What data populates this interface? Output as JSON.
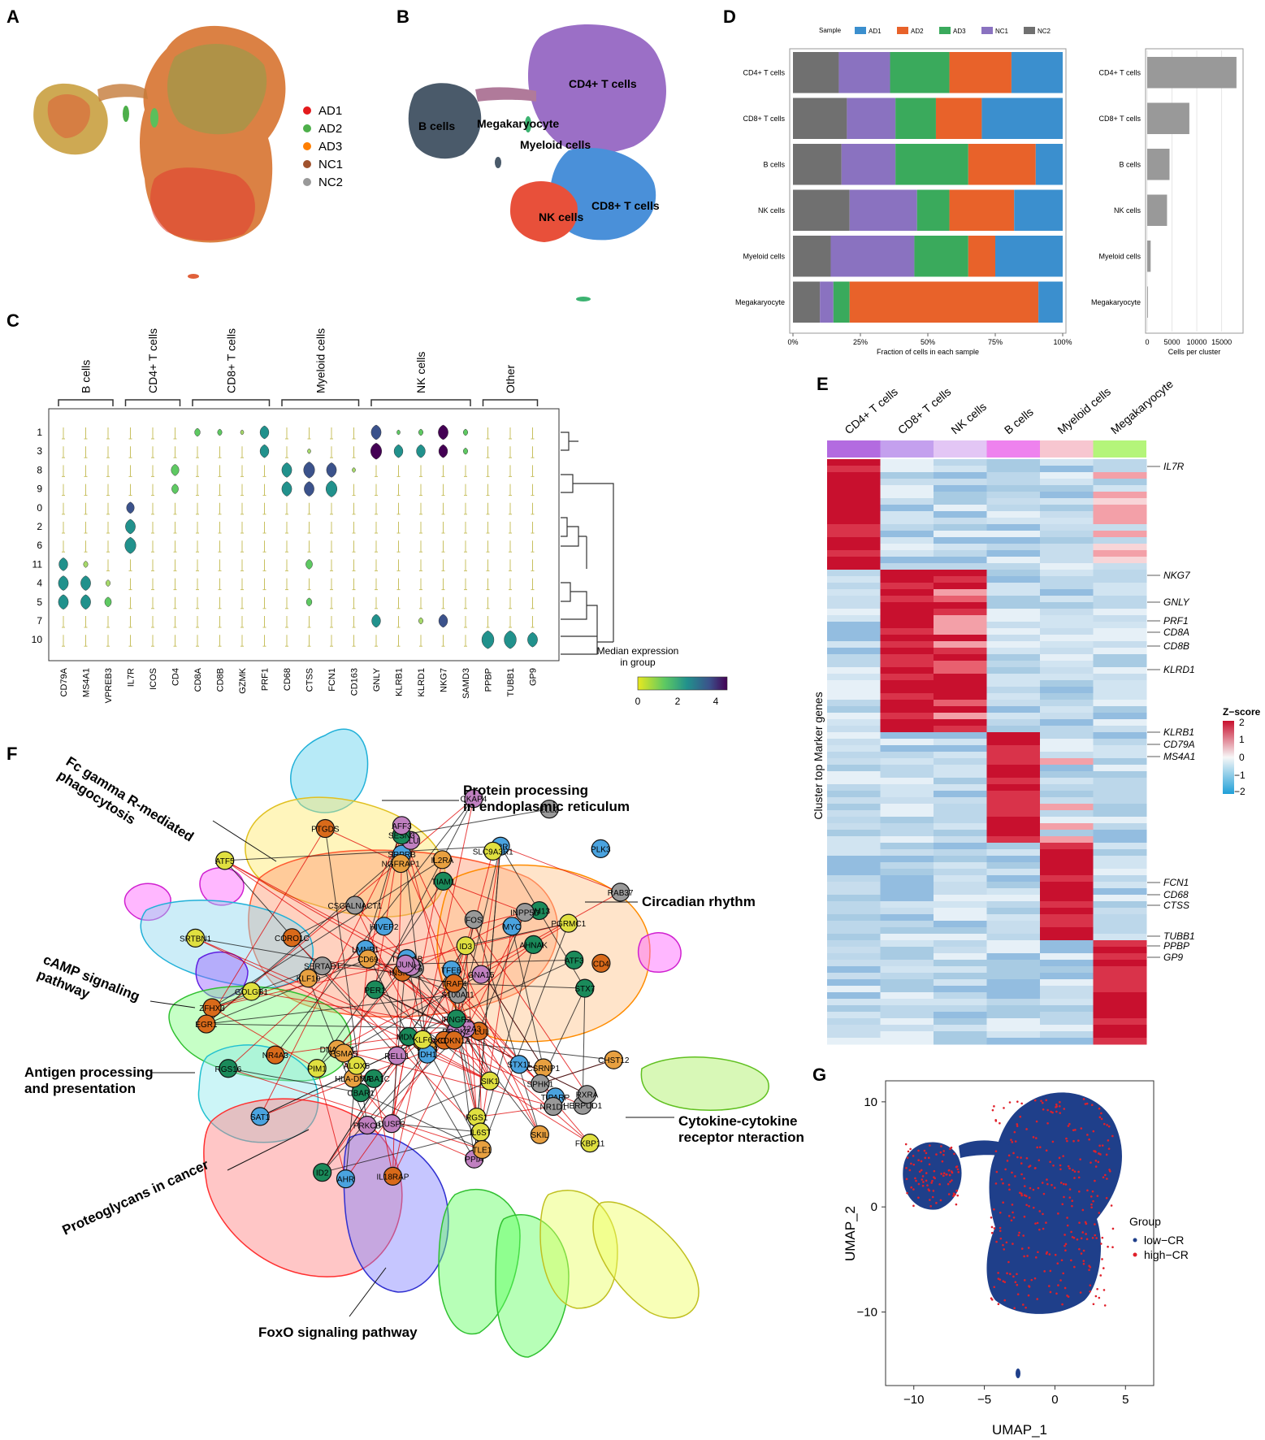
{
  "panel_letters": [
    "A",
    "B",
    "C",
    "D",
    "E",
    "F",
    "G"
  ],
  "panelA": {
    "legend": [
      {
        "label": "AD1",
        "color": "#e41a1c"
      },
      {
        "label": "AD2",
        "color": "#4daf4a"
      },
      {
        "label": "AD3",
        "color": "#ff7f00"
      },
      {
        "label": "NC1",
        "color": "#a0522d"
      },
      {
        "label": "NC2",
        "color": "#999999"
      }
    ]
  },
  "panelB": {
    "clusters": [
      {
        "label": "CD4+ T cells",
        "color": "#9b6fc6"
      },
      {
        "label": "B cells",
        "color": "#4a5a6a"
      },
      {
        "label": "Megakaryocyte",
        "color": "#e0603a"
      },
      {
        "label": "Myeloid cells",
        "color": "#3cb371"
      },
      {
        "label": "CD8+ T cells",
        "color": "#4a90d9"
      },
      {
        "label": "NK cells",
        "color": "#e8503a"
      }
    ]
  },
  "panelC": {
    "groups": [
      {
        "label": "B cells",
        "genes": [
          "CD79A",
          "MS4A1",
          "VPREB3"
        ]
      },
      {
        "label": "CD4+ T cells",
        "genes": [
          "IL7R",
          "ICOS",
          "CD4"
        ]
      },
      {
        "label": "CD8+ T cells",
        "genes": [
          "CD8A",
          "CD8B",
          "GZMK",
          "PRF1"
        ]
      },
      {
        "label": "Myeloid cells",
        "genes": [
          "CD68",
          "CTSS",
          "FCN1",
          "CD163"
        ]
      },
      {
        "label": "NK cells",
        "genes": [
          "GNLY",
          "KLRB1",
          "KLRD1",
          "NKG7",
          "SAMD3"
        ]
      },
      {
        "label": "Other",
        "genes": [
          "PPBP",
          "TUBB1",
          "GP9"
        ]
      }
    ],
    "clusters": [
      "1",
      "3",
      "8",
      "9",
      "0",
      "2",
      "6",
      "11",
      "4",
      "5",
      "7",
      "10"
    ],
    "colorbar": {
      "title1": "Median expression",
      "title2": "in group",
      "ticks": [
        "0",
        "2",
        "4"
      ]
    }
  },
  "chart_data": [
    {
      "type": "bar",
      "title": "",
      "legend_title": "Sample",
      "legend": [
        "AD1",
        "AD2",
        "AD3",
        "NC1",
        "NC2"
      ],
      "colors": {
        "AD1": "#3b8fce",
        "AD2": "#e8622a",
        "AD3": "#3aaa5c",
        "NC1": "#8a72c0",
        "NC2": "#707070"
      },
      "categories": [
        "CD4+ T cells",
        "CD8+ T cells",
        "B cells",
        "NK cells",
        "Myeloid cells",
        "Megakaryocyte"
      ],
      "stack_order": [
        "NC2",
        "NC1",
        "AD3",
        "AD2",
        "AD1"
      ],
      "series": [
        {
          "name": "NC2",
          "values": [
            17,
            20,
            18,
            21,
            14,
            10
          ]
        },
        {
          "name": "NC1",
          "values": [
            19,
            18,
            20,
            25,
            31,
            5
          ]
        },
        {
          "name": "AD3",
          "values": [
            22,
            15,
            27,
            12,
            20,
            6
          ]
        },
        {
          "name": "AD2",
          "values": [
            23,
            17,
            25,
            24,
            10,
            70
          ]
        },
        {
          "name": "AD1",
          "values": [
            19,
            30,
            10,
            18,
            25,
            9
          ]
        }
      ],
      "xlabel": "Fraction of cells in each sample",
      "xticks": [
        "0%",
        "25%",
        "50%",
        "75%",
        "100%"
      ],
      "xlim": [
        0,
        100
      ]
    },
    {
      "type": "bar",
      "categories": [
        "CD4+ T cells",
        "CD8+ T cells",
        "B cells",
        "NK cells",
        "Myeloid cells",
        "Megakaryocyte"
      ],
      "values": [
        18000,
        8500,
        4500,
        4000,
        700,
        150
      ],
      "xlabel": "Cells per cluster",
      "xticks": [
        "0",
        "5000",
        "10000",
        "15000"
      ],
      "xlim": [
        0,
        19000
      ],
      "color": "#999999"
    },
    {
      "type": "heatmap",
      "columns": [
        "CD4+ T cells",
        "CD8+ T cells",
        "NK cells",
        "B cells",
        "Myeloid cells",
        "Megakaryocyte"
      ],
      "column_colors": [
        "#b36be0",
        "#c4a0ee",
        "#e3c6f5",
        "#ee82ee",
        "#f7c6d0",
        "#b4f57a"
      ],
      "ylabel": "Cluster top Marker genes",
      "gene_labels": [
        "IL7R",
        "NKG7",
        "GNLY",
        "PRF1",
        "CD8A",
        "CD8B",
        "KLRD1",
        "KLRB1",
        "CD79A",
        "MS4A1",
        "FCN1",
        "CD68",
        "CTSS",
        "TUBB1",
        "PPBP",
        "GP9"
      ],
      "legend_title": "Z−score",
      "legend_ticks": [
        "2",
        "1",
        "0",
        "−1",
        "−2"
      ]
    },
    {
      "type": "scatter",
      "xlabel": "UMAP_1",
      "ylabel": "UMAP_2",
      "xticks": [
        "−10",
        "−5",
        "0",
        "5"
      ],
      "yticks": [
        "10",
        "0",
        "−10"
      ],
      "xlim": [
        -12,
        7
      ],
      "ylim": [
        -17,
        12
      ],
      "legend_title": "Group",
      "legend": [
        {
          "label": "low−CR",
          "color": "#1f3f8a"
        },
        {
          "label": "high−CR",
          "color": "#e0202a"
        }
      ]
    }
  ],
  "panelF": {
    "pathways": [
      "Fc gamma R-mediated phagocytosis",
      "Protein processing in endoplasmic reticulum",
      "Circadian rhythm",
      "cAMP signaling pathway",
      "Antigen processing and presentation",
      "Cytokine-cytokine receptor nteraction",
      "Proteoglycans in cancer",
      "FoxO signaling pathway"
    ],
    "pathway_lines": [
      [
        "Fc gamma R-mediated",
        "phagocytosis"
      ],
      [
        "Protein processing",
        "in endoplasmic reticulum"
      ],
      [
        "Circadian rhythm"
      ],
      [
        "cAMP signaling",
        "pathway"
      ],
      [
        "Antigen processing",
        "and presentation"
      ],
      [
        "Cytokine-cytokine",
        "receptor nteraction"
      ],
      [
        "Proteoglycans in cancer"
      ],
      [
        "FoxO signaling pathway"
      ]
    ],
    "nodes": [
      "SRPRB",
      "HM13",
      "FKBP11",
      "SDF2L1",
      "DNAJB11",
      "CKAP4",
      "HERPUD1",
      "TUBA1B",
      "TUBA1C",
      "ATF5",
      "GLUL",
      "CSRNP1",
      "SLC2A3",
      "RAB37",
      "SAT1",
      "AHNAK",
      "GOLGB1",
      "CORO1C",
      "PSMA5",
      "PPIA",
      "S100A11",
      "TFEB",
      "CBAR1",
      "PGRMC1",
      "INSIG1",
      "CST3",
      "CLU",
      "SPHK1",
      "IDH1",
      "TIAM1",
      "SRTBN1",
      "PTGDS",
      "HLA-DMA",
      "PRKCB",
      "INPP5D",
      "F2R",
      "SESN3",
      "RGS1",
      "ZFHX3",
      "SKIL",
      "GNA15",
      "ER5",
      "PLK3",
      "RGS16",
      "SLC9A3R1",
      "IL18RAP",
      "CHST12",
      "PROK2",
      "CSGALNACT1",
      "STX11",
      "STX7",
      "ALOX5",
      "TRAF4",
      "NGFRAP1",
      "AFF3",
      "ELL2",
      "HIVEP2",
      "IFNGR2",
      "IL6ST",
      "CXCL16",
      "IL2RA",
      "RELL1",
      "SERTAD1",
      "TIPARP",
      "PER1",
      "SIK1",
      "NR4A3",
      "TLE1",
      "DUSP2",
      "RXRA",
      "LMNB1",
      "MDM2",
      "PIM1",
      "CDKN1A",
      "KLF10",
      "PER2",
      "NR1D1",
      "AHR",
      "ID2",
      "ID3",
      "CD4",
      "CD69",
      "JUN",
      "FOS",
      "MYC",
      "ATF3",
      "KLF6",
      "EGR1"
    ]
  }
}
